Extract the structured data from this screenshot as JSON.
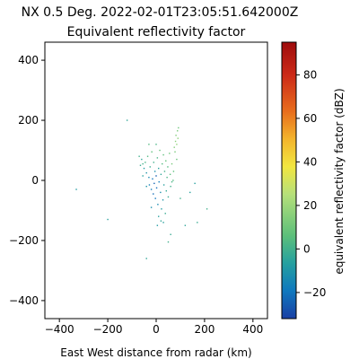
{
  "chart_data": {
    "type": "scatter",
    "title": "NX 0.5 Deg. 2022-02-01T23:05:51.642000Z",
    "subtitle": "Equivalent reflectivity factor",
    "xlabel": "East West distance from radar (km)",
    "ylabel": "",
    "xlim": [
      -460,
      460
    ],
    "ylim": [
      -460,
      460
    ],
    "x_ticks": [
      -400,
      -200,
      0,
      200,
      400
    ],
    "y_ticks": [
      -400,
      -200,
      0,
      200,
      400
    ],
    "grid": false,
    "colorbar": {
      "label": "equivalent reflectivity factor (dBZ)",
      "range": [
        -32,
        95
      ],
      "ticks": [
        -20,
        0,
        20,
        40,
        60,
        80
      ],
      "colormap": "pyart_HomeyerRainbow"
    },
    "series": [
      {
        "points": [
          {
            "x": -60,
            "y": 70,
            "v": -4
          },
          {
            "x": -55,
            "y": 55,
            "v": 0
          },
          {
            "x": -50,
            "y": 40,
            "v": -8
          },
          {
            "x": -45,
            "y": 60,
            "v": 2
          },
          {
            "x": -40,
            "y": 25,
            "v": -10
          },
          {
            "x": -35,
            "y": 80,
            "v": 4
          },
          {
            "x": -30,
            "y": 10,
            "v": -14
          },
          {
            "x": -28,
            "y": -15,
            "v": -16
          },
          {
            "x": -25,
            "y": 45,
            "v": -2
          },
          {
            "x": -20,
            "y": -30,
            "v": -18
          },
          {
            "x": -18,
            "y": 95,
            "v": 6
          },
          {
            "x": -15,
            "y": 5,
            "v": -20
          },
          {
            "x": -12,
            "y": -45,
            "v": -22
          },
          {
            "x": -10,
            "y": 60,
            "v": 0
          },
          {
            "x": -8,
            "y": -10,
            "v": -24
          },
          {
            "x": -5,
            "y": 30,
            "v": -12
          },
          {
            "x": -3,
            "y": -60,
            "v": -20
          },
          {
            "x": 0,
            "y": 15,
            "v": -26
          },
          {
            "x": 2,
            "y": -25,
            "v": -22
          },
          {
            "x": 5,
            "y": 75,
            "v": 2
          },
          {
            "x": 7,
            "y": -80,
            "v": -14
          },
          {
            "x": 10,
            "y": 40,
            "v": -6
          },
          {
            "x": 12,
            "y": -5,
            "v": -18
          },
          {
            "x": 15,
            "y": 100,
            "v": 8
          },
          {
            "x": 18,
            "y": -40,
            "v": -12
          },
          {
            "x": 20,
            "y": 20,
            "v": -4
          },
          {
            "x": 22,
            "y": -95,
            "v": -8
          },
          {
            "x": 25,
            "y": 55,
            "v": 4
          },
          {
            "x": 28,
            "y": -65,
            "v": -10
          },
          {
            "x": 30,
            "y": 85,
            "v": 6
          },
          {
            "x": 32,
            "y": -15,
            "v": -6
          },
          {
            "x": 35,
            "y": 30,
            "v": 0
          },
          {
            "x": 38,
            "y": -110,
            "v": -2
          },
          {
            "x": 40,
            "y": 65,
            "v": 8
          },
          {
            "x": 42,
            "y": -35,
            "v": -4
          },
          {
            "x": 45,
            "y": 10,
            "v": 2
          },
          {
            "x": 48,
            "y": 45,
            "v": 4
          },
          {
            "x": 50,
            "y": -55,
            "v": -2
          },
          {
            "x": 55,
            "y": 90,
            "v": 10
          },
          {
            "x": 58,
            "y": 20,
            "v": 6
          },
          {
            "x": 60,
            "y": -20,
            "v": 0
          },
          {
            "x": 65,
            "y": 55,
            "v": 12
          },
          {
            "x": 70,
            "y": 0,
            "v": 4
          },
          {
            "x": 75,
            "y": 110,
            "v": 14
          },
          {
            "x": 80,
            "y": 130,
            "v": 16
          },
          {
            "x": 82,
            "y": 150,
            "v": 14
          },
          {
            "x": 85,
            "y": 120,
            "v": 18
          },
          {
            "x": 88,
            "y": 165,
            "v": 12
          },
          {
            "x": 90,
            "y": 140,
            "v": 16
          },
          {
            "x": 92,
            "y": 175,
            "v": 10
          },
          {
            "x": 78,
            "y": 95,
            "v": 12
          },
          {
            "x": 85,
            "y": 70,
            "v": 8
          },
          {
            "x": 72,
            "y": 30,
            "v": 6
          },
          {
            "x": 65,
            "y": -5,
            "v": 2
          },
          {
            "x": 10,
            "y": -120,
            "v": -6
          },
          {
            "x": 20,
            "y": -135,
            "v": -4
          },
          {
            "x": -20,
            "y": -90,
            "v": -12
          },
          {
            "x": -40,
            "y": -20,
            "v": -10
          },
          {
            "x": -55,
            "y": 15,
            "v": -6
          },
          {
            "x": -65,
            "y": 50,
            "v": -2
          },
          {
            "x": -70,
            "y": 80,
            "v": 0
          },
          {
            "x": 0,
            "y": 120,
            "v": 2
          },
          {
            "x": 5,
            "y": -150,
            "v": -8
          },
          {
            "x": 30,
            "y": -140,
            "v": -6
          },
          {
            "x": -30,
            "y": 120,
            "v": 4
          },
          {
            "x": 100,
            "y": -60,
            "v": 0
          },
          {
            "x": 120,
            "y": -150,
            "v": -4
          },
          {
            "x": 60,
            "y": -180,
            "v": -2
          },
          {
            "x": 50,
            "y": -205,
            "v": 0
          },
          {
            "x": 160,
            "y": -10,
            "v": -6
          },
          {
            "x": -120,
            "y": 200,
            "v": -4
          },
          {
            "x": -330,
            "y": -30,
            "v": -8
          },
          {
            "x": -200,
            "y": -130,
            "v": -6
          },
          {
            "x": -40,
            "y": -260,
            "v": -4
          },
          {
            "x": 170,
            "y": -140,
            "v": -2
          },
          {
            "x": 210,
            "y": -95,
            "v": 0
          },
          {
            "x": 140,
            "y": -40,
            "v": -6
          }
        ]
      }
    ]
  }
}
